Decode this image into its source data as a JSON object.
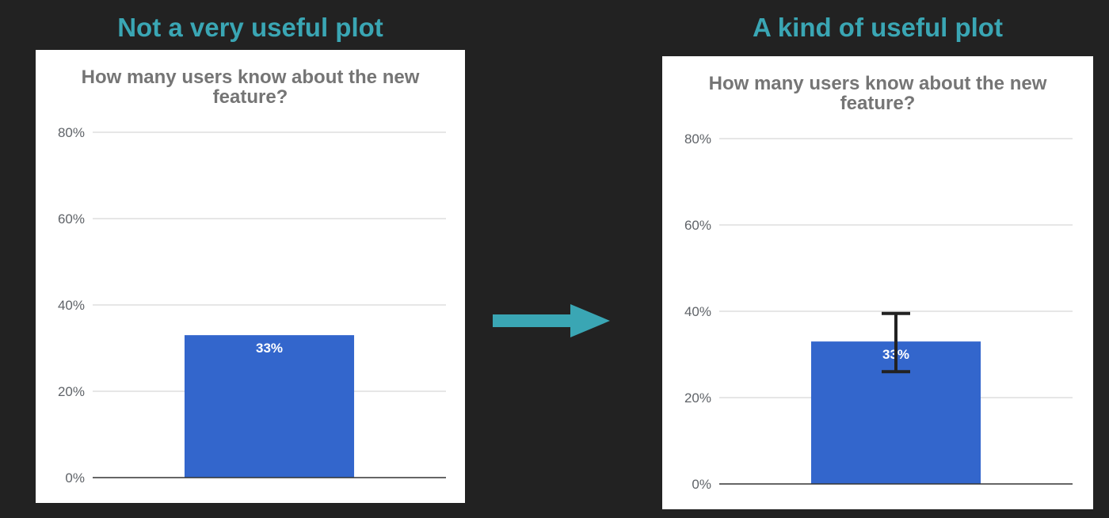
{
  "left_heading": "Not a very useful plot",
  "right_heading": "A kind of useful plot",
  "colors": {
    "background": "#222222",
    "heading": "#3aa6b4",
    "bar": "#3366cc",
    "arrow": "#3aa6b4",
    "gridline": "#cccccc",
    "axis": "#333333",
    "error_bar": "#222222"
  },
  "chart_data": [
    {
      "type": "bar",
      "title_lines": [
        "How many users know about the new",
        "feature?"
      ],
      "categories": [
        ""
      ],
      "values": [
        33
      ],
      "data_labels": [
        "33%"
      ],
      "ylim": [
        0,
        80
      ],
      "yticks": [
        0,
        20,
        40,
        60,
        80
      ],
      "ytick_labels": [
        "0%",
        "20%",
        "40%",
        "60%",
        "80%"
      ],
      "grid": true,
      "legend": "none"
    },
    {
      "type": "bar",
      "title_lines": [
        "How many users know about the new",
        "feature?"
      ],
      "categories": [
        ""
      ],
      "values": [
        33
      ],
      "data_labels": [
        "33%"
      ],
      "error_bars": [
        {
          "low": 26,
          "high": 39.5
        }
      ],
      "ylim": [
        0,
        80
      ],
      "yticks": [
        0,
        20,
        40,
        60,
        80
      ],
      "ytick_labels": [
        "0%",
        "20%",
        "40%",
        "60%",
        "80%"
      ],
      "grid": true,
      "legend": "none"
    }
  ]
}
